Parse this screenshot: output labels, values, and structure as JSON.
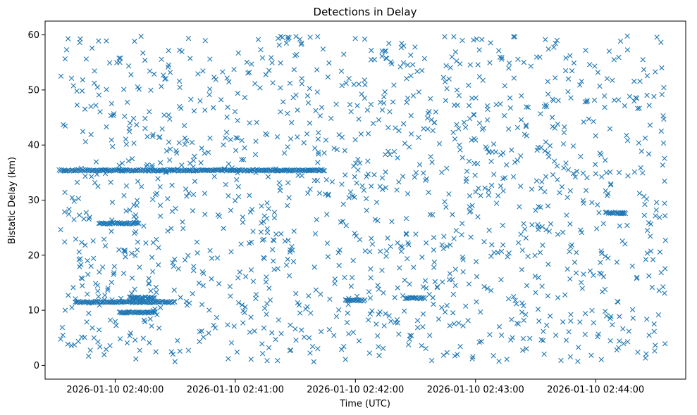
{
  "chart_data": {
    "type": "scatter",
    "title": "Detections in Delay",
    "xlabel": "Time (UTC)",
    "ylabel": "Bistatic Delay (km)",
    "marker": "x",
    "color": "#1f77b4",
    "grid": false,
    "legend": "none",
    "xlim": [
      "2026-01-10 02:39:25",
      "2026-01-10 02:44:45"
    ],
    "ylim": [
      -2.5,
      62.5
    ],
    "xticks": [
      "2026-01-10 02:40:00",
      "2026-01-10 02:41:00",
      "2026-01-10 02:42:00",
      "2026-01-10 02:43:00",
      "2026-01-10 02:44:00"
    ],
    "yticks": [
      "0",
      "10",
      "20",
      "30",
      "40",
      "50",
      "60"
    ],
    "tracks": [
      {
        "t_start": "2026-01-10 02:39:32",
        "t_end": "2026-01-10 02:41:45",
        "delay_start": 35.4,
        "delay_end": 35.4
      },
      {
        "t_start": "2026-01-10 02:39:52",
        "t_end": "2026-01-10 02:40:12",
        "delay_start": 25.8,
        "delay_end": 25.8
      },
      {
        "t_start": "2026-01-10 02:40:07",
        "t_end": "2026-01-10 02:40:20",
        "delay_start": 12.3,
        "delay_end": 12.3
      },
      {
        "t_start": "2026-01-10 02:40:02",
        "t_end": "2026-01-10 02:40:20",
        "delay_start": 9.6,
        "delay_end": 9.6
      },
      {
        "t_start": "2026-01-10 02:41:55",
        "t_end": "2026-01-10 02:42:05",
        "delay_start": 11.8,
        "delay_end": 11.8
      },
      {
        "t_start": "2026-01-10 02:42:25",
        "t_end": "2026-01-10 02:42:35",
        "delay_start": 12.2,
        "delay_end": 12.2
      },
      {
        "t_start": "2026-01-10 02:44:05",
        "t_end": "2026-01-10 02:44:15",
        "delay_start": 27.7,
        "delay_end": 27.7
      },
      {
        "t_start": "2026-01-10 02:39:40",
        "t_end": "2026-01-10 02:40:30",
        "delay_start": 11.5,
        "delay_end": 11.5
      }
    ],
    "background_clutter": {
      "t_range": [
        "2026-01-10 02:39:32",
        "2026-01-10 02:44:35"
      ],
      "delay_range": [
        0.5,
        59.8
      ],
      "approx_count": 1400
    }
  }
}
